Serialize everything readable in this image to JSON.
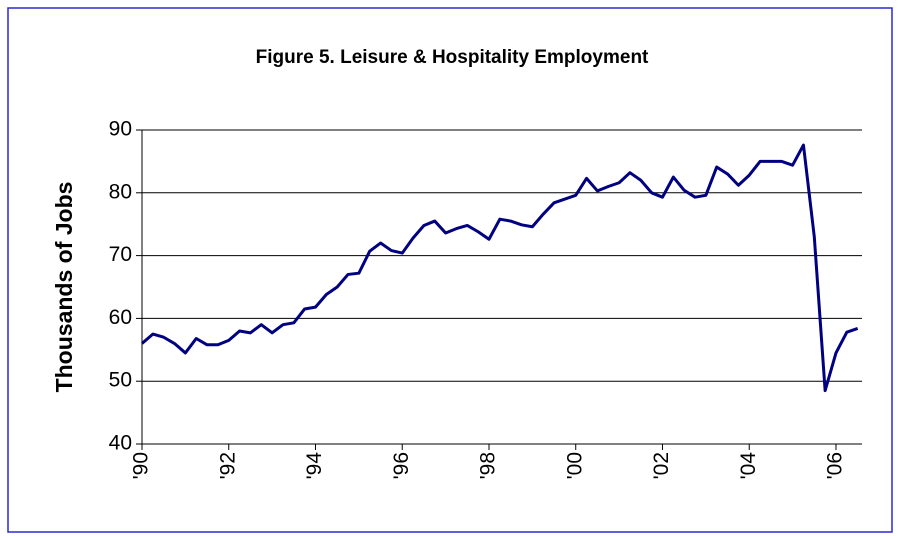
{
  "chart_data": {
    "type": "line",
    "title": "Figure 5. Leisure & Hospitality Employment",
    "y_label": "Thousands of Jobs",
    "x": [
      1990,
      1990.25,
      1990.5,
      1990.75,
      1991,
      1991.25,
      1991.5,
      1991.75,
      1992,
      1992.25,
      1992.5,
      1992.75,
      1993,
      1993.25,
      1993.5,
      1993.75,
      1994,
      1994.25,
      1994.5,
      1994.75,
      1995,
      1995.25,
      1995.5,
      1995.75,
      1996,
      1996.25,
      1996.5,
      1996.75,
      1997,
      1997.25,
      1997.5,
      1997.75,
      1998,
      1998.25,
      1998.5,
      1998.75,
      1999,
      1999.25,
      1999.5,
      1999.75,
      2000,
      2000.25,
      2000.5,
      2000.75,
      2001,
      2001.25,
      2001.5,
      2001.75,
      2002,
      2002.25,
      2002.5,
      2002.75,
      2003,
      2003.25,
      2003.5,
      2003.75,
      2004,
      2004.25,
      2004.5,
      2004.75,
      2005,
      2005.25,
      2005.5,
      2005.75,
      2006,
      2006.25,
      2006.5
    ],
    "values": [
      56,
      57.5,
      57,
      56,
      54.5,
      56.8,
      55.8,
      55.8,
      56.5,
      58,
      57.7,
      59,
      57.7,
      59,
      59.3,
      61.5,
      61.8,
      63.8,
      65,
      67,
      67.2,
      70.7,
      72,
      70.8,
      70.4,
      72.8,
      74.8,
      75.5,
      73.6,
      74.3,
      74.8,
      73.8,
      72.6,
      75.8,
      75.5,
      74.9,
      74.6,
      76.6,
      78.4,
      79,
      79.6,
      82.3,
      80.3,
      81,
      81.6,
      83.2,
      82,
      80,
      79.3,
      82.5,
      80.4,
      79.3,
      79.6,
      84.1,
      83,
      81.2,
      82.8,
      85,
      85,
      85,
      84.4,
      87.6,
      73,
      48.5,
      54.5,
      57.8,
      58.4
    ],
    "color": "#000080",
    "xlim": [
      1990,
      2006.6
    ],
    "xticks": [
      {
        "value": 1990,
        "label": "'90"
      },
      {
        "value": 1992,
        "label": "'92"
      },
      {
        "value": 1994,
        "label": "'94"
      },
      {
        "value": 1996,
        "label": "'96"
      },
      {
        "value": 1998,
        "label": "'98"
      },
      {
        "value": 2000,
        "label": "'00"
      },
      {
        "value": 2002,
        "label": "'02"
      },
      {
        "value": 2004,
        "label": "'04"
      },
      {
        "value": 2006,
        "label": "'06"
      }
    ],
    "ylim": [
      40,
      90
    ],
    "yticks": [
      40,
      50,
      60,
      70,
      80,
      90
    ],
    "grid": true
  }
}
